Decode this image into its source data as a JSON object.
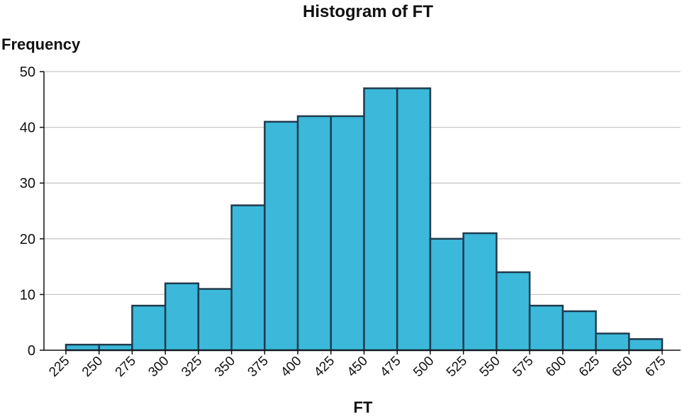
{
  "chart_data": {
    "type": "bar",
    "title": "Histogram of FT",
    "xlabel": "FT",
    "ylabel": "Frequency",
    "bin_edges": [
      225,
      250,
      275,
      300,
      325,
      350,
      375,
      400,
      425,
      450,
      475,
      500,
      525,
      550,
      575,
      600,
      625,
      650,
      675
    ],
    "x_tick_labels": [
      "225",
      "250",
      "275",
      "300",
      "325",
      "350",
      "375",
      "400",
      "425",
      "450",
      "475",
      "500",
      "525",
      "550",
      "575",
      "600",
      "625",
      "650",
      "675"
    ],
    "values": [
      1,
      1,
      8,
      12,
      11,
      26,
      41,
      42,
      42,
      47,
      47,
      20,
      21,
      14,
      8,
      7,
      3,
      2
    ],
    "ylim": [
      0,
      50
    ],
    "y_ticks": [
      0,
      10,
      20,
      30,
      40,
      50
    ],
    "grid": true,
    "bar_color": "#3bb8da",
    "bar_edge_color": "#1f3b4d"
  }
}
